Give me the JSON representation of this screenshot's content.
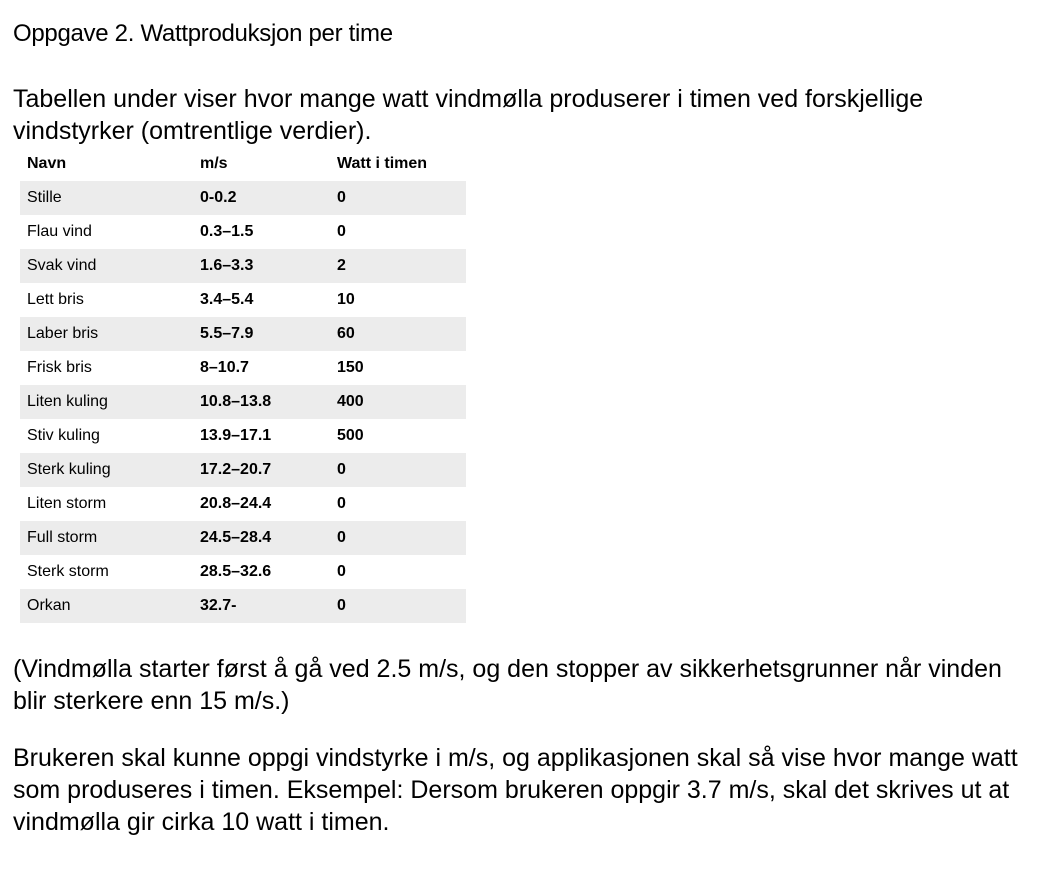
{
  "title": "Oppgave 2. Wattproduksjon per time",
  "intro": "Tabellen under viser hvor mange watt vindmølla produserer i timen ved forskjellige vindstyrker (omtrentlige verdier).",
  "table": {
    "headers": [
      "Navn",
      "m/s",
      "Watt i timen"
    ],
    "rows": [
      {
        "navn": "Stille",
        "ms": "0-0.2",
        "watt": "0"
      },
      {
        "navn": "Flau vind",
        "ms": "0.3–1.5",
        "watt": "0"
      },
      {
        "navn": "Svak vind",
        "ms": "1.6–3.3",
        "watt": "2"
      },
      {
        "navn": "Lett bris",
        "ms": "3.4–5.4",
        "watt": "10"
      },
      {
        "navn": "Laber bris",
        "ms": "5.5–7.9",
        "watt": "60"
      },
      {
        "navn": "Frisk bris",
        "ms": "8–10.7",
        "watt": "150"
      },
      {
        "navn": "Liten kuling",
        "ms": "10.8–13.8",
        "watt": "400"
      },
      {
        "navn": "Stiv kuling",
        "ms": "13.9–17.1",
        "watt": "500"
      },
      {
        "navn": "Sterk kuling",
        "ms": "17.2–20.7",
        "watt": "0"
      },
      {
        "navn": "Liten storm",
        "ms": "20.8–24.4",
        "watt": "0"
      },
      {
        "navn": "Full storm",
        "ms": "24.5–28.4",
        "watt": "0"
      },
      {
        "navn": "Sterk storm",
        "ms": "28.5–32.6",
        "watt": "0"
      },
      {
        "navn": "Orkan",
        "ms": "32.7-",
        "watt": "0"
      }
    ]
  },
  "note": "(Vindmølla starter først å gå ved 2.5 m/s, og den stopper av sikkerhetsgrunner når vinden blir sterkere enn 15 m/s.)",
  "task": "Brukeren skal kunne oppgi vindstyrke i m/s, og applikasjonen skal så vise hvor mange watt som produseres i timen. Eksempel: Dersom brukeren oppgir 3.7 m/s, skal det skrives ut at vindmølla gir cirka 10 watt i timen."
}
